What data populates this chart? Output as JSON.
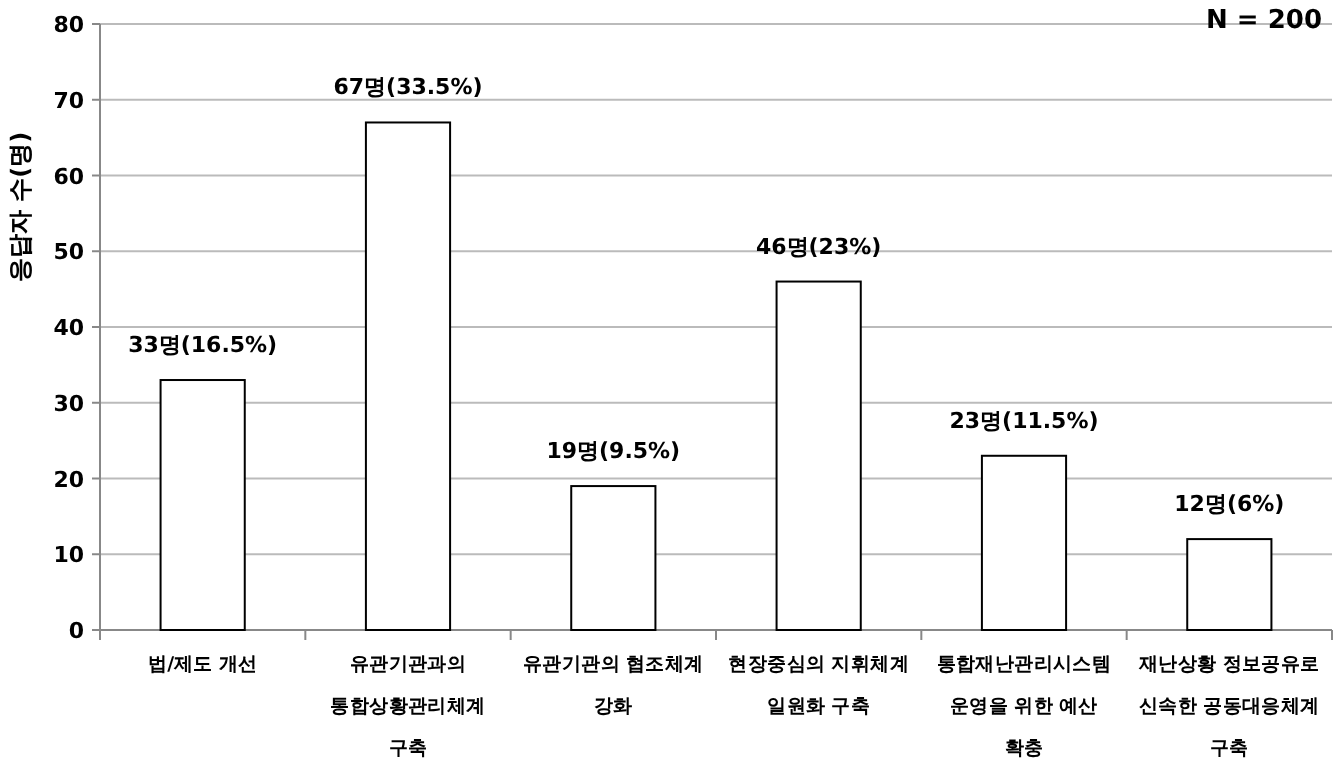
{
  "chart_data": {
    "type": "bar",
    "ylabel": "응답자 수(명)",
    "annotations": [
      "N = 200"
    ],
    "categories": [
      "법/제도 개선",
      "유관기관과의\n통합상황관리체계\n구축",
      "유관기관의 협조체계\n강화",
      "현장중심의 지휘체계\n일원화 구축",
      "통합재난관리시스템\n운영을 위한 예산\n확충",
      "재난상황 정보공유로\n신속한 공동대응체계\n구축"
    ],
    "values": [
      33,
      67,
      19,
      46,
      23,
      12
    ],
    "value_labels": [
      "33명(16.5%)",
      "67명(33.5%)",
      "19명(9.5%)",
      "46명(23%)",
      "23명(11.5%)",
      "12명(6%)"
    ],
    "color": "#ffffff",
    "ylim": [
      0,
      80
    ],
    "yticks": [
      0,
      10,
      20,
      30,
      40,
      50,
      60,
      70,
      80
    ],
    "grid": "y"
  }
}
